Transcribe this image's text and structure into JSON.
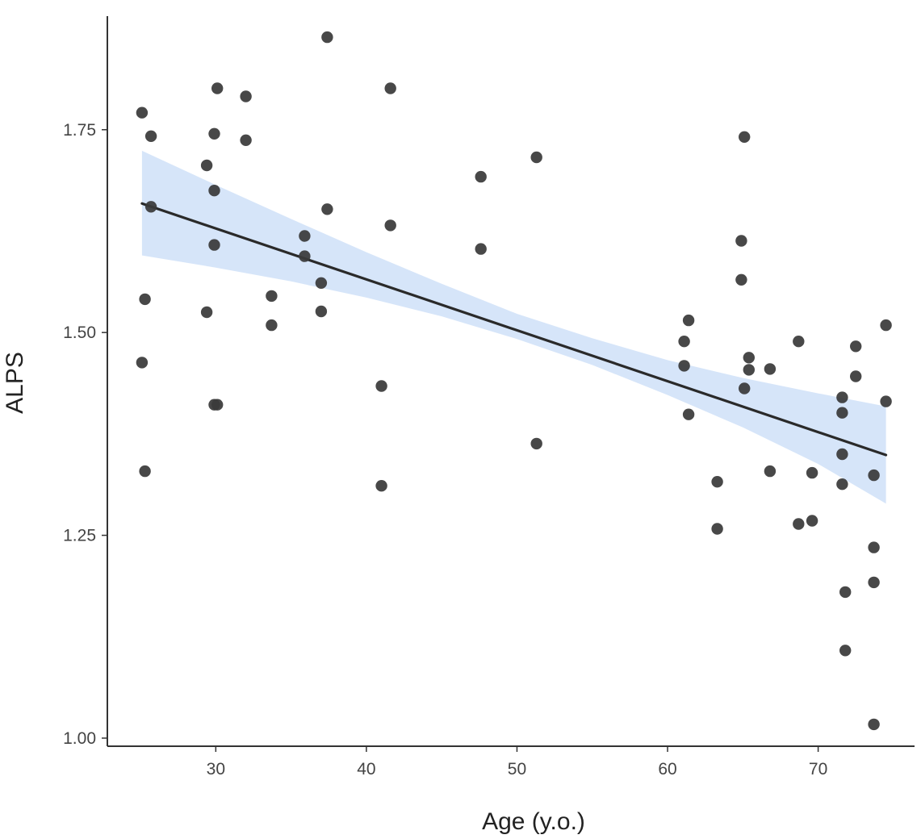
{
  "chart_data": {
    "type": "scatter",
    "title": "",
    "xlabel": "Age   (y.o.)",
    "ylabel": "ALPS",
    "xlim": [
      22.8,
      76.4
    ],
    "ylim": [
      0.99,
      1.89
    ],
    "x_ticks": [
      30,
      40,
      50,
      60,
      70
    ],
    "x_tick_labels": [
      "30",
      "40",
      "50",
      "60",
      "70"
    ],
    "y_ticks": [
      1.0,
      1.25,
      1.5,
      1.75
    ],
    "y_tick_labels": [
      "1.00",
      "1.25",
      "1.50",
      "1.75"
    ],
    "grid": false,
    "legend": "none",
    "point_color": "#3a3a3a",
    "fit_line_color": "#2a2a2a",
    "ci_band_color": "#cfe1f8",
    "points": [
      {
        "x": 25.1,
        "y": 1.771
      },
      {
        "x": 25.7,
        "y": 1.742
      },
      {
        "x": 25.7,
        "y": 1.655
      },
      {
        "x": 25.3,
        "y": 1.541
      },
      {
        "x": 25.1,
        "y": 1.463
      },
      {
        "x": 25.3,
        "y": 1.329
      },
      {
        "x": 30.1,
        "y": 1.801
      },
      {
        "x": 29.9,
        "y": 1.745
      },
      {
        "x": 29.4,
        "y": 1.706
      },
      {
        "x": 29.9,
        "y": 1.675
      },
      {
        "x": 29.9,
        "y": 1.608
      },
      {
        "x": 29.4,
        "y": 1.525
      },
      {
        "x": 29.9,
        "y": 1.411
      },
      {
        "x": 30.1,
        "y": 1.411
      },
      {
        "x": 32.0,
        "y": 1.791
      },
      {
        "x": 32.0,
        "y": 1.737
      },
      {
        "x": 33.7,
        "y": 1.545
      },
      {
        "x": 33.7,
        "y": 1.509
      },
      {
        "x": 35.9,
        "y": 1.619
      },
      {
        "x": 35.9,
        "y": 1.594
      },
      {
        "x": 37.0,
        "y": 1.561
      },
      {
        "x": 37.0,
        "y": 1.526
      },
      {
        "x": 37.4,
        "y": 1.864
      },
      {
        "x": 37.4,
        "y": 1.652
      },
      {
        "x": 41.0,
        "y": 1.434
      },
      {
        "x": 41.0,
        "y": 1.311
      },
      {
        "x": 41.6,
        "y": 1.801
      },
      {
        "x": 41.6,
        "y": 1.632
      },
      {
        "x": 47.6,
        "y": 1.692
      },
      {
        "x": 47.6,
        "y": 1.603
      },
      {
        "x": 51.3,
        "y": 1.716
      },
      {
        "x": 51.3,
        "y": 1.363
      },
      {
        "x": 61.1,
        "y": 1.489
      },
      {
        "x": 61.1,
        "y": 1.459
      },
      {
        "x": 61.4,
        "y": 1.515
      },
      {
        "x": 61.4,
        "y": 1.399
      },
      {
        "x": 63.3,
        "y": 1.316
      },
      {
        "x": 63.3,
        "y": 1.258
      },
      {
        "x": 64.9,
        "y": 1.613
      },
      {
        "x": 64.9,
        "y": 1.565
      },
      {
        "x": 65.1,
        "y": 1.741
      },
      {
        "x": 65.1,
        "y": 1.431
      },
      {
        "x": 65.4,
        "y": 1.469
      },
      {
        "x": 65.4,
        "y": 1.454
      },
      {
        "x": 66.8,
        "y": 1.455
      },
      {
        "x": 66.8,
        "y": 1.329
      },
      {
        "x": 68.7,
        "y": 1.489
      },
      {
        "x": 68.7,
        "y": 1.264
      },
      {
        "x": 69.6,
        "y": 1.327
      },
      {
        "x": 69.6,
        "y": 1.268
      },
      {
        "x": 71.6,
        "y": 1.42
      },
      {
        "x": 71.6,
        "y": 1.401
      },
      {
        "x": 71.6,
        "y": 1.35
      },
      {
        "x": 71.6,
        "y": 1.313
      },
      {
        "x": 71.8,
        "y": 1.18
      },
      {
        "x": 71.8,
        "y": 1.108
      },
      {
        "x": 72.5,
        "y": 1.483
      },
      {
        "x": 72.5,
        "y": 1.446
      },
      {
        "x": 73.7,
        "y": 1.324
      },
      {
        "x": 73.7,
        "y": 1.235
      },
      {
        "x": 73.7,
        "y": 1.192
      },
      {
        "x": 73.7,
        "y": 1.017
      },
      {
        "x": 74.5,
        "y": 1.509
      },
      {
        "x": 74.5,
        "y": 1.415
      }
    ],
    "fit_line": {
      "x": [
        25.1,
        74.5
      ],
      "y": [
        1.659,
        1.349
      ]
    },
    "confidence_band": {
      "x": [
        25.1,
        30,
        35,
        40,
        45,
        50,
        55,
        60,
        65,
        70,
        74.5
      ],
      "upper": [
        1.724,
        1.682,
        1.64,
        1.599,
        1.56,
        1.523,
        1.493,
        1.466,
        1.444,
        1.425,
        1.409
      ],
      "lower": [
        1.595,
        1.58,
        1.563,
        1.543,
        1.52,
        1.492,
        1.46,
        1.423,
        1.383,
        1.338,
        1.289
      ]
    }
  }
}
